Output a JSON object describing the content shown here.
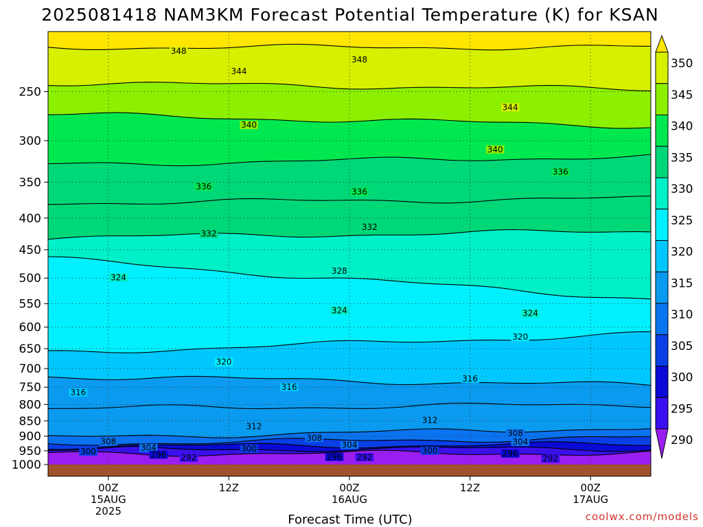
{
  "chart_data": {
    "type": "heatmap",
    "title": "2025081418 NAM3KM Forecast Potential Temperature (K) for KSAN",
    "xlabel": "Forecast Time (UTC)",
    "ylabel": "",
    "y_ticks": [
      250,
      300,
      350,
      400,
      450,
      500,
      550,
      600,
      650,
      700,
      750,
      800,
      850,
      900,
      950,
      1000
    ],
    "x_ticks": [
      {
        "hour": 6,
        "l1": "00Z",
        "l2": "15AUG",
        "l3": "2025"
      },
      {
        "hour": 18,
        "l1": "12Z",
        "l2": "",
        "l3": ""
      },
      {
        "hour": 30,
        "l1": "00Z",
        "l2": "16AUG",
        "l3": ""
      },
      {
        "hour": 42,
        "l1": "12Z",
        "l2": "",
        "l3": ""
      },
      {
        "hour": 54,
        "l1": "00Z",
        "l2": "17AUG",
        "l3": ""
      }
    ],
    "x_range_hours": [
      0,
      60
    ],
    "y_range_hpa": [
      200,
      1000
    ],
    "grid": true,
    "colorbar_levels": [
      290,
      295,
      300,
      305,
      310,
      315,
      320,
      325,
      330,
      335,
      340,
      345,
      350
    ],
    "colorbar_colors": [
      "#9b1ef0",
      "#3a0ff0",
      "#0a0ad6",
      "#0a3fe6",
      "#0a73f0",
      "#0a9bf0",
      "#00c8ff",
      "#00f0ff",
      "#00f0c8",
      "#00d878",
      "#00e850",
      "#8cf000",
      "#d6f000",
      "#ffe600"
    ],
    "contour_levels": [
      {
        "theta": 348,
        "p_start": 212,
        "p_end": 212
      },
      {
        "theta": 344,
        "p_start": 242,
        "p_end": 248
      },
      {
        "theta": 340,
        "p_start": 272,
        "p_end": 284
      },
      {
        "theta": 336,
        "p_start": 328,
        "p_end": 318
      },
      {
        "theta": 332,
        "p_start": 378,
        "p_end": 372
      },
      {
        "theta": 328,
        "p_start": 430,
        "p_end": 420
      },
      {
        "theta": 324,
        "p_start": 465,
        "p_end": 540
      },
      {
        "theta": 320,
        "p_start": 660,
        "p_end": 615
      },
      {
        "theta": 316,
        "p_start": 720,
        "p_end": 745
      },
      {
        "theta": 312,
        "p_start": 812,
        "p_end": 800
      },
      {
        "theta": 308,
        "p_start": 905,
        "p_end": 872
      },
      {
        "theta": 304,
        "p_start": 925,
        "p_end": 905
      },
      {
        "theta": 300,
        "p_start": 935,
        "p_end": 928
      },
      {
        "theta": 296,
        "p_start": 945,
        "p_end": 942
      },
      {
        "theta": 292,
        "p_start": 960,
        "p_end": 958
      }
    ],
    "contour_labels": [
      {
        "text": "348",
        "hour": 13.0,
        "p": 215
      },
      {
        "text": "348",
        "hour": 31.0,
        "p": 222
      },
      {
        "text": "344",
        "hour": 19.0,
        "p": 232
      },
      {
        "text": "344",
        "hour": 46.0,
        "p": 265
      },
      {
        "text": "340",
        "hour": 20.0,
        "p": 283
      },
      {
        "text": "340",
        "hour": 44.5,
        "p": 310
      },
      {
        "text": "336",
        "hour": 15.5,
        "p": 356
      },
      {
        "text": "336",
        "hour": 31.0,
        "p": 363
      },
      {
        "text": "336",
        "hour": 51.0,
        "p": 337
      },
      {
        "text": "332",
        "hour": 16.0,
        "p": 424
      },
      {
        "text": "332",
        "hour": 32.0,
        "p": 414
      },
      {
        "text": "328",
        "hour": 29.0,
        "p": 487
      },
      {
        "text": "324",
        "hour": 7.0,
        "p": 499
      },
      {
        "text": "324",
        "hour": 29.0,
        "p": 564
      },
      {
        "text": "324",
        "hour": 48.0,
        "p": 570
      },
      {
        "text": "320",
        "hour": 17.5,
        "p": 683
      },
      {
        "text": "320",
        "hour": 47.0,
        "p": 622
      },
      {
        "text": "316",
        "hour": 3.0,
        "p": 765
      },
      {
        "text": "316",
        "hour": 24.0,
        "p": 750
      },
      {
        "text": "316",
        "hour": 42.0,
        "p": 727
      },
      {
        "text": "312",
        "hour": 20.5,
        "p": 868
      },
      {
        "text": "312",
        "hour": 38.0,
        "p": 848
      },
      {
        "text": "308",
        "hour": 6.0,
        "p": 918
      },
      {
        "text": "308",
        "hour": 26.5,
        "p": 906
      },
      {
        "text": "308",
        "hour": 46.5,
        "p": 890
      },
      {
        "text": "304",
        "hour": 10.0,
        "p": 940
      },
      {
        "text": "304",
        "hour": 30.0,
        "p": 930
      },
      {
        "text": "304",
        "hour": 47.0,
        "p": 919
      },
      {
        "text": "300",
        "hour": 4.0,
        "p": 953
      },
      {
        "text": "300",
        "hour": 20.0,
        "p": 943
      },
      {
        "text": "300",
        "hour": 38.0,
        "p": 950
      },
      {
        "text": "296",
        "hour": 11.0,
        "p": 964
      },
      {
        "text": "296",
        "hour": 28.5,
        "p": 972
      },
      {
        "text": "296",
        "hour": 46.0,
        "p": 960
      },
      {
        "text": "292",
        "hour": 14.0,
        "p": 975
      },
      {
        "text": "292",
        "hour": 31.5,
        "p": 973
      },
      {
        "text": "292",
        "hour": 50.0,
        "p": 978
      }
    ],
    "credit": "coolwx.com/models"
  }
}
